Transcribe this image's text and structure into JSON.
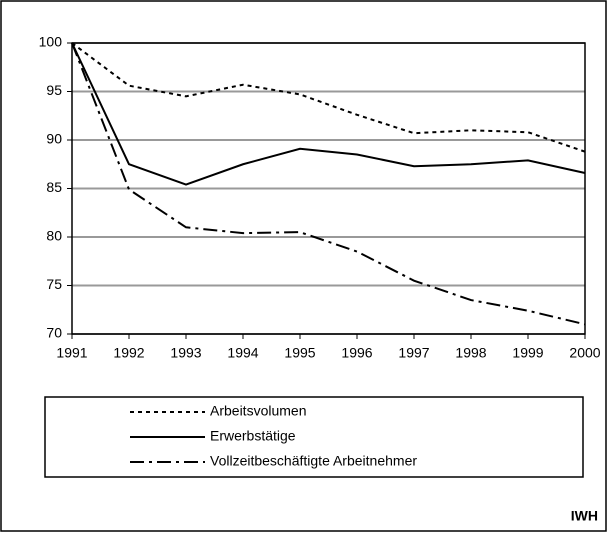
{
  "chart_data": {
    "type": "line",
    "x": [
      1991,
      1992,
      1993,
      1994,
      1995,
      1996,
      1997,
      1998,
      1999,
      2000
    ],
    "xlim": [
      1991,
      2000
    ],
    "xticks": [
      1991,
      1992,
      1993,
      1994,
      1995,
      1996,
      1997,
      1998,
      1999,
      2000
    ],
    "ylim": [
      70,
      100
    ],
    "yticks": [
      70,
      75,
      80,
      85,
      90,
      95,
      100
    ],
    "grid": true,
    "series": [
      {
        "name": "Arbeitsvolumen",
        "color": "#000000",
        "dash": "dotted",
        "values": [
          100,
          95.6,
          94.5,
          95.7,
          94.7,
          92.6,
          90.7,
          91.0,
          90.8,
          88.8
        ]
      },
      {
        "name": "Erwerbstätige",
        "color": "#000000",
        "dash": "solid",
        "values": [
          100,
          87.5,
          85.4,
          87.5,
          89.1,
          88.5,
          87.3,
          87.5,
          87.9,
          86.6
        ]
      },
      {
        "name": "Vollzeitbeschäftigte Arbeitnehmer",
        "color": "#000000",
        "dash": "dashdot",
        "values": [
          100,
          84.9,
          81.0,
          80.4,
          80.5,
          78.5,
          75.5,
          73.5,
          72.4,
          71.0
        ]
      }
    ],
    "source": "IWH"
  }
}
